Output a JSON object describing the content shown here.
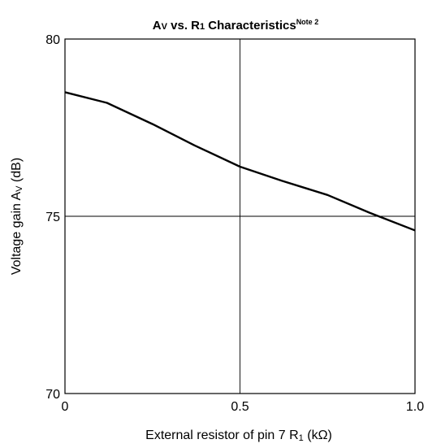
{
  "chart_data": {
    "type": "line",
    "title": {
      "main_a": "A",
      "main_sub_v": "V",
      "main_b": " vs. R",
      "main_sub_1": "1",
      "main_c": " Characteristics",
      "note": "Note 2"
    },
    "xlabel": {
      "before": "External resistor of pin 7 R",
      "sub": "1",
      "after": " (kΩ)"
    },
    "ylabel": {
      "before": "Voltage gain A",
      "sub": "V",
      "after": " (dB)"
    },
    "xlim": [
      0,
      1.0
    ],
    "ylim": [
      70,
      80
    ],
    "x_ticks": [
      "0",
      "0.5",
      "1.0"
    ],
    "y_ticks": [
      "70",
      "75",
      "80"
    ],
    "grid": true,
    "series": [
      {
        "x": [
          0,
          0.12,
          0.25,
          0.37,
          0.5,
          0.62,
          0.75,
          0.87,
          1.0
        ],
        "y": [
          78.5,
          78.2,
          77.6,
          77.0,
          76.4,
          76.0,
          75.6,
          75.1,
          74.6
        ]
      }
    ]
  }
}
